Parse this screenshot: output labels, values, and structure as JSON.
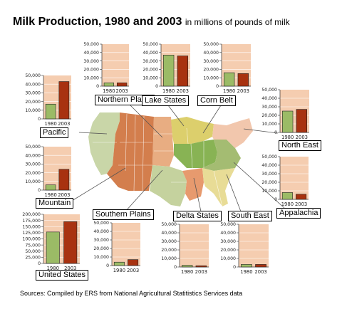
{
  "title": "Milk Production, 1980 and 2003",
  "subtitle": "in millions of pounds of milk",
  "source": "Sources: Compiled by ERS from National Agricultural Statitistics Services data",
  "colors": {
    "panel_bg": "#f5cdb0",
    "bar_1980": "#9bbb66",
    "bar_2003": "#a83210",
    "grid": "#ffffff",
    "leader": "#555555"
  },
  "chart_data": [
    {
      "type": "bar",
      "title": "Northern Plains",
      "categories": [
        "1980",
        "2003"
      ],
      "values": [
        4000,
        4000
      ],
      "ylim": [
        0,
        50000
      ],
      "yticks": [
        "0",
        "10,000",
        "20,000",
        "30,000",
        "40,000",
        "50,000"
      ]
    },
    {
      "type": "bar",
      "title": "Lake States",
      "categories": [
        "1980",
        "2003"
      ],
      "values": [
        37000,
        36000
      ],
      "ylim": [
        0,
        50000
      ],
      "yticks": [
        "0",
        "10,000",
        "20,000",
        "30,000",
        "40,000",
        "50,000"
      ]
    },
    {
      "type": "bar",
      "title": "Corn Belt",
      "categories": [
        "1980",
        "2003"
      ],
      "values": [
        16000,
        15000
      ],
      "ylim": [
        0,
        50000
      ],
      "yticks": [
        "0",
        "10,000",
        "20,000",
        "30,000",
        "40,000",
        "50,000"
      ]
    },
    {
      "type": "bar",
      "title": "Pacific",
      "categories": [
        "1980",
        "2003"
      ],
      "values": [
        17000,
        43000
      ],
      "ylim": [
        0,
        50000
      ],
      "yticks": [
        "0",
        "10,000",
        "20,000",
        "30,000",
        "40,000",
        "50,000"
      ]
    },
    {
      "type": "bar",
      "title": "North East",
      "categories": [
        "1980",
        "2003"
      ],
      "values": [
        25000,
        27000
      ],
      "ylim": [
        0,
        50000
      ],
      "yticks": [
        "0",
        "10,000",
        "20,000",
        "30,000",
        "40,000",
        "50,000"
      ]
    },
    {
      "type": "bar",
      "title": "Mountain",
      "categories": [
        "1980",
        "2003"
      ],
      "values": [
        6000,
        24000
      ],
      "ylim": [
        0,
        50000
      ],
      "yticks": [
        "0",
        "10,000",
        "20,000",
        "30,000",
        "40,000",
        "50,000"
      ]
    },
    {
      "type": "bar",
      "title": "Appalachia",
      "categories": [
        "1980",
        "2003"
      ],
      "values": [
        8000,
        6000
      ],
      "ylim": [
        0,
        50000
      ],
      "yticks": [
        "0",
        "10,000",
        "20,000",
        "30,000",
        "40,000",
        "50,000"
      ]
    },
    {
      "type": "bar",
      "title": "United States",
      "categories": [
        "1980",
        "2003"
      ],
      "values": [
        128000,
        170000
      ],
      "ylim": [
        0,
        200000
      ],
      "yticks": [
        "0",
        "25,000",
        "50,000",
        "75,000",
        "100,000",
        "125,000",
        "150,000",
        "175,000",
        "200,000"
      ]
    },
    {
      "type": "bar",
      "title": "Southern Plains",
      "categories": [
        "1980",
        "2003"
      ],
      "values": [
        4000,
        7000
      ],
      "ylim": [
        0,
        50000
      ],
      "yticks": [
        "0",
        "10,000",
        "20,000",
        "30,000",
        "40,000",
        "50,000"
      ]
    },
    {
      "type": "bar",
      "title": "Delta States",
      "categories": [
        "1980",
        "2003"
      ],
      "values": [
        2000,
        1500
      ],
      "ylim": [
        0,
        50000
      ],
      "yticks": [
        "0",
        "10,000",
        "20,000",
        "30,000",
        "40,000",
        "50,000"
      ]
    },
    {
      "type": "bar",
      "title": "South East",
      "categories": [
        "1980",
        "2003"
      ],
      "values": [
        3000,
        3000
      ],
      "ylim": [
        0,
        50000
      ],
      "yticks": [
        "0",
        "10,000",
        "20,000",
        "30,000",
        "40,000",
        "50,000"
      ]
    }
  ]
}
